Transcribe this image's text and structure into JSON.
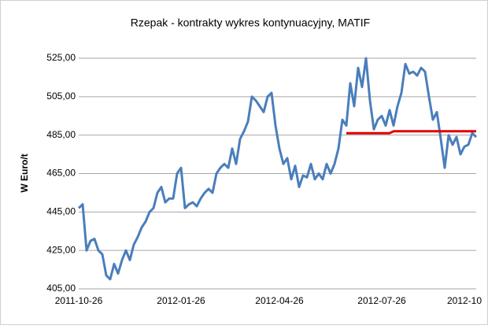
{
  "chart_data": {
    "type": "line",
    "title": "Rzepak - kontrakty wykres kontynuacyjny, MATIF",
    "y_label": "W Euro/t",
    "categories": [
      "2011-10-26",
      null,
      null,
      null,
      null,
      null,
      null,
      null,
      null,
      null,
      null,
      null,
      null,
      null,
      null,
      null,
      null,
      null,
      null,
      null,
      null,
      null,
      null,
      null,
      null,
      null,
      "2012-01-26",
      null,
      null,
      null,
      null,
      null,
      null,
      null,
      null,
      null,
      null,
      null,
      null,
      null,
      null,
      null,
      null,
      null,
      null,
      null,
      null,
      null,
      null,
      null,
      null,
      "2012-04-26",
      null,
      null,
      null,
      null,
      null,
      null,
      null,
      null,
      null,
      null,
      null,
      null,
      null,
      null,
      null,
      null,
      null,
      null,
      null,
      null,
      null,
      null,
      null,
      null,
      null,
      "2012-07-26",
      null,
      null,
      null,
      null,
      null,
      null,
      null,
      null,
      null,
      null,
      null,
      null,
      null,
      null,
      null,
      null,
      null,
      null,
      null,
      null,
      null,
      null,
      null,
      "2012-10"
    ],
    "series": [
      {
        "color": "#4a7ebb",
        "values": [
          447,
          449,
          425,
          430,
          431,
          425,
          423,
          412,
          410,
          418,
          413,
          420,
          425,
          420,
          428,
          432,
          437,
          440,
          445,
          447,
          455,
          458,
          450,
          452,
          452,
          465,
          468,
          447,
          449,
          450,
          448,
          452,
          455,
          457,
          455,
          465,
          468,
          470,
          468,
          478,
          470,
          483,
          487,
          492,
          505,
          503,
          500,
          497,
          505,
          507,
          490,
          478,
          470,
          473,
          462,
          469,
          458,
          464,
          463,
          470,
          462,
          465,
          462,
          470,
          465,
          470,
          478,
          493,
          490,
          512,
          500,
          520,
          510,
          525,
          503,
          488,
          493,
          495,
          490,
          498,
          490,
          500,
          507,
          522,
          517,
          518,
          516,
          520,
          518,
          505,
          493,
          497,
          483,
          468,
          485,
          480,
          484,
          475,
          479,
          480,
          486,
          484
        ]
      },
      {
        "color": "#e00000",
        "values": [
          null,
          null,
          null,
          null,
          null,
          null,
          null,
          null,
          null,
          null,
          null,
          null,
          null,
          null,
          null,
          null,
          null,
          null,
          null,
          null,
          null,
          null,
          null,
          null,
          null,
          null,
          null,
          null,
          null,
          null,
          null,
          null,
          null,
          null,
          null,
          null,
          null,
          null,
          null,
          null,
          null,
          null,
          null,
          null,
          null,
          null,
          null,
          null,
          null,
          null,
          null,
          null,
          null,
          null,
          null,
          null,
          null,
          null,
          null,
          null,
          null,
          null,
          null,
          null,
          null,
          null,
          null,
          null,
          486,
          486,
          486,
          486,
          486,
          486,
          486,
          486,
          486,
          486,
          486,
          486,
          487,
          487,
          487,
          487,
          487,
          487,
          487,
          487,
          487,
          487,
          487,
          487,
          487,
          487,
          487,
          487,
          487,
          487,
          487,
          487,
          487,
          487
        ]
      }
    ],
    "ylim": [
      405,
      525
    ],
    "yticks": [
      {
        "value": 405,
        "label": "405,00"
      },
      {
        "value": 425,
        "label": "425,00"
      },
      {
        "value": 445,
        "label": "445,00"
      },
      {
        "value": 465,
        "label": "465,00"
      },
      {
        "value": 485,
        "label": "485,00"
      },
      {
        "value": 505,
        "label": "505,00"
      },
      {
        "value": 525,
        "label": "525,00"
      }
    ],
    "grid": true
  }
}
